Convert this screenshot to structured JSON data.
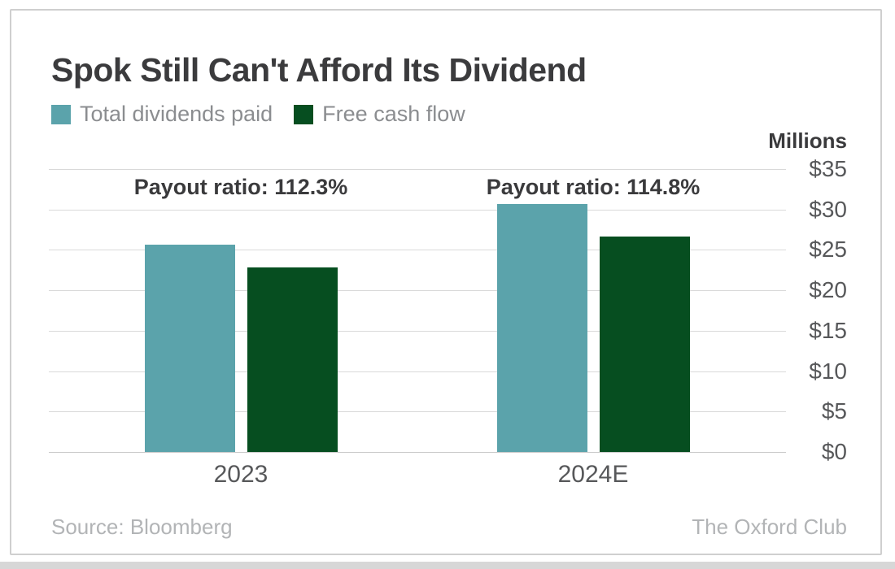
{
  "chart_data": {
    "type": "bar",
    "title": "Spok Still Can't Afford Its Dividend",
    "unit_label": "Millions",
    "categories": [
      "2023",
      "2024E"
    ],
    "series": [
      {
        "name": "Total dividends paid",
        "color": "#5ba3ab",
        "values": [
          25.6,
          30.7
        ]
      },
      {
        "name": "Free cash flow",
        "color": "#064e20",
        "values": [
          22.8,
          26.7
        ]
      }
    ],
    "annotations": [
      "Payout ratio: 112.3%",
      "Payout ratio: 114.8%"
    ],
    "y_ticks": [
      "$0",
      "$5",
      "$10",
      "$15",
      "$20",
      "$25",
      "$30",
      "$35"
    ],
    "y_tick_values": [
      0,
      5,
      10,
      15,
      20,
      25,
      30,
      35
    ],
    "ylim": [
      0,
      35
    ],
    "grid": true,
    "legend_position": "top-left",
    "xlabel": "",
    "ylabel": "Millions"
  },
  "footer": {
    "source": "Source: Bloomberg",
    "brand": "The Oxford Club"
  }
}
